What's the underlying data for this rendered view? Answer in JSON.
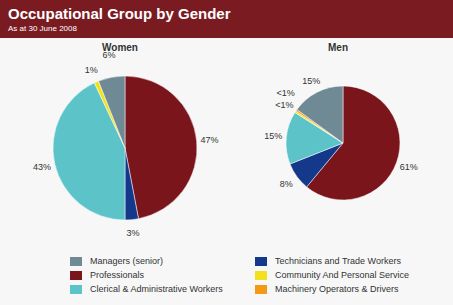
{
  "title": "Occupational Group by Gender",
  "subtitle": "As at 30 June 2008",
  "legend_items": [
    "Managers (senior)",
    "Professionals",
    "Clerical & Administrative Workers",
    "Technicians and Trade Workers",
    "Community And Personal Service",
    "Machinery Operators & Drivers"
  ],
  "chart_data": [
    {
      "type": "pie",
      "title": "Women",
      "categories": [
        "Professionals",
        "Technicians and Trade Workers",
        "Clerical & Administrative Workers",
        "Community And Personal Service",
        "Managers (senior)"
      ],
      "values": [
        47,
        3,
        43,
        1,
        6
      ],
      "value_labels": [
        "47%",
        "3%",
        "43%",
        "1%",
        "6%"
      ],
      "colors": [
        "#7b151c",
        "#14398a",
        "#5cc4c9",
        "#f3e11d",
        "#6f8a95"
      ],
      "data_labels": true
    },
    {
      "type": "pie",
      "title": "Men",
      "categories": [
        "Professionals",
        "Technicians and Trade Workers",
        "Clerical & Administrative Workers",
        "Community And Personal Service",
        "Machinery Operators & Drivers",
        "Managers (senior)"
      ],
      "values": [
        61,
        8,
        15,
        0.5,
        0.5,
        15
      ],
      "value_labels": [
        "61%",
        "8%",
        "15%",
        "<1%",
        "<1%",
        "15%"
      ],
      "colors": [
        "#7b151c",
        "#14398a",
        "#5cc4c9",
        "#f3e11d",
        "#f39a12",
        "#6f8a95"
      ],
      "data_labels": true
    }
  ]
}
